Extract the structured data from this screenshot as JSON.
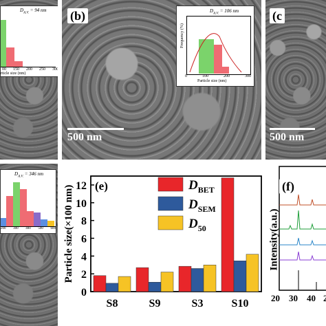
{
  "panels": {
    "a": {
      "inset_label": "D",
      "inset_sub": "A.V.",
      "inset_value": "= 94 nm",
      "xaxis": "rticle size (nm)",
      "ticks": [
        "00",
        "150",
        "200",
        "250",
        "300"
      ]
    },
    "b": {
      "label": "(b)",
      "scale": "500 nm",
      "inset_label": "D",
      "inset_sub": "A.V.",
      "inset_value": "= 106 nm",
      "yaxis": "Frequency (%)",
      "xaxis": "Particle size (nm)",
      "ticks": [
        "0",
        "100",
        "200",
        "300"
      ]
    },
    "c": {
      "label": "(c",
      "scale": "500 nm"
    },
    "d": {
      "inset_label": "D",
      "inset_sub": "A.V.",
      "inset_value": "= 346 nm",
      "ticks": [
        "200",
        "300",
        "400",
        "500",
        "600"
      ]
    },
    "e": {
      "label": "(e)"
    },
    "f": {
      "label": "(f)",
      "ylabel": "Intensity(a.u.)",
      "ticks": [
        "20",
        "30",
        "40",
        "2"
      ]
    }
  },
  "chart_data": {
    "type": "bar",
    "categories": [
      "S8",
      "S9",
      "S3",
      "S10"
    ],
    "ylabel": "Particle size(×100 nm)",
    "ylim": [
      0,
      13
    ],
    "yticks": [
      0,
      2,
      4,
      6,
      8,
      10,
      12
    ],
    "series": [
      {
        "name": "D",
        "sub": "BET",
        "color": "#e8262a",
        "values": [
          1.8,
          2.7,
          2.85,
          12.8
        ]
      },
      {
        "name": "D",
        "sub": "SEM",
        "color": "#2e5a9c",
        "values": [
          0.94,
          1.06,
          2.6,
          3.46
        ]
      },
      {
        "name": "D",
        "sub": "50",
        "color": "#f6c325",
        "values": [
          1.7,
          2.2,
          3.0,
          4.2
        ]
      }
    ]
  }
}
